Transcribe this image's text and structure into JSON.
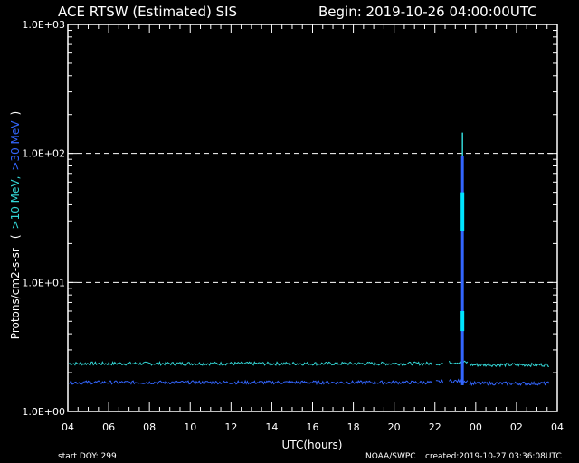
{
  "header": {
    "title": "ACE RTSW (Estimated) SIS",
    "begin": "Begin: 2019-10-26 04:00:00UTC"
  },
  "footer": {
    "start_doy": "start DOY:  299",
    "source": "NOAA/SWPC",
    "created": "created:2019-10-27 03:36:08UTC"
  },
  "colors": {
    "background": "#000000",
    "axes": "#ffffff",
    "series_10mev": "#33d6d6",
    "series_30mev": "#3366ff",
    "spike_10mev": "#00e5ff"
  },
  "chart_data": {
    "type": "line",
    "yscale": "log",
    "xlabel": "UTC(hours)",
    "ylabel_parts": [
      {
        "text": "Protons/cm2-s-sr",
        "color": "#ffffff"
      },
      {
        "text": "(",
        "color": "#ffffff"
      },
      {
        "text": ">10 MeV,",
        "color": "#33d6d6"
      },
      {
        "text": ">30 MeV",
        "color": "#3366ff"
      },
      {
        "text": ")",
        "color": "#ffffff"
      }
    ],
    "xlim": [
      0,
      24
    ],
    "ylim": [
      1,
      1000
    ],
    "x_tick_labels": [
      "04",
      "06",
      "08",
      "10",
      "12",
      "14",
      "16",
      "18",
      "20",
      "22",
      "00",
      "02",
      "04"
    ],
    "y_tick_labels": [
      "1.0E+00",
      "1.0E+01",
      "1.0E+02",
      "1.0E+03"
    ],
    "y_tick_values": [
      1,
      10,
      100,
      1000
    ],
    "gridlines_y": [
      10,
      100
    ],
    "series": [
      {
        "color": "#33d6d6",
        "baseline_segments": [
          {
            "x_start": 0.05,
            "x_end": 17.85,
            "value": 2.35
          },
          {
            "x_start": 18.05,
            "x_end": 18.4,
            "value": 2.35
          },
          {
            "x_start": 18.7,
            "x_end": 19.6,
            "value": 2.4
          },
          {
            "x_start": 19.7,
            "x_end": 23.6,
            "value": 2.3
          }
        ],
        "spike": {
          "x": 19.35,
          "peak": 145,
          "base": 1.6
        }
      },
      {
        "color": "#3366ff",
        "baseline_segments": [
          {
            "x_start": 0.05,
            "x_end": 17.85,
            "value": 1.68
          },
          {
            "x_start": 18.05,
            "x_end": 18.4,
            "value": 1.7
          },
          {
            "x_start": 18.7,
            "x_end": 19.6,
            "value": 1.72
          },
          {
            "x_start": 19.7,
            "x_end": 23.6,
            "value": 1.65
          }
        ],
        "spike": {
          "x": 19.35,
          "peak": 95,
          "base": 1.6
        }
      }
    ]
  }
}
